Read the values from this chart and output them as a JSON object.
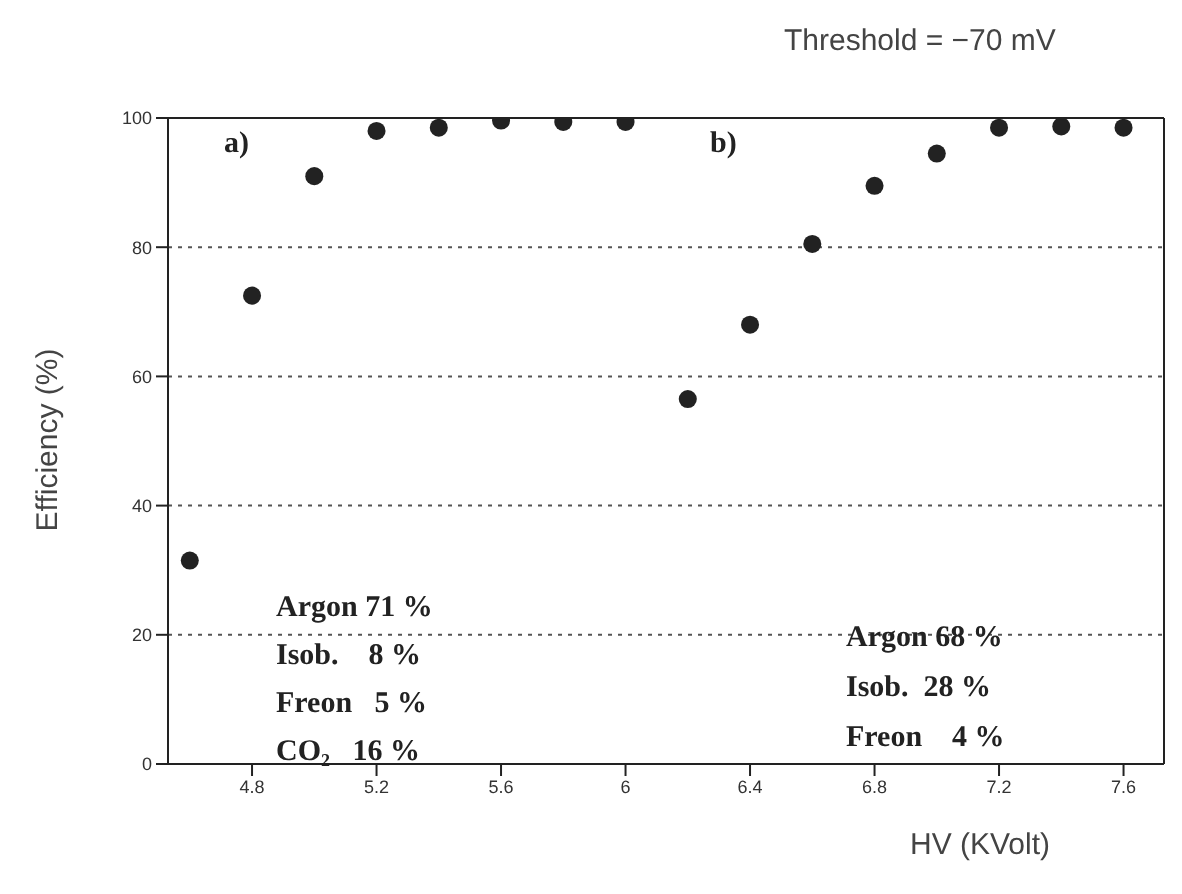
{
  "chart_data": {
    "type": "scatter",
    "title": "Threshold = −70 mV",
    "xlabel": "HV (KVolt)",
    "ylabel": "Efficiency (%)",
    "xlim": [
      4.53,
      7.73
    ],
    "xticks": [
      4.8,
      5.2,
      5.6,
      6,
      6.4,
      6.8,
      7.2,
      7.6
    ],
    "ylim": [
      0,
      100
    ],
    "yticks": [
      0,
      20,
      40,
      60,
      80,
      100
    ],
    "grid": "y",
    "marker": "circle",
    "series": [
      {
        "color": "#222222",
        "x": [
          4.6,
          4.8,
          5.0,
          5.2,
          5.4,
          5.6,
          5.8,
          6.0
        ],
        "values": [
          31.5,
          72.5,
          91,
          98,
          98.5,
          99.6,
          99.4,
          99.4
        ]
      },
      {
        "color": "#222222",
        "x": [
          6.2,
          6.4,
          6.6,
          6.8,
          7.0,
          7.2,
          7.4,
          7.6
        ],
        "values": [
          56.5,
          68,
          80.5,
          89.5,
          94.5,
          98.5,
          98.7,
          98.5
        ]
      }
    ],
    "annotations": [
      "a)",
      "b)",
      "Argon 71 %",
      "Isob.    8 %",
      "Freon   5 %",
      "CO₂   16 %",
      "Argon 68 %",
      "Isob.  28 %",
      "Freon    4 %"
    ]
  }
}
